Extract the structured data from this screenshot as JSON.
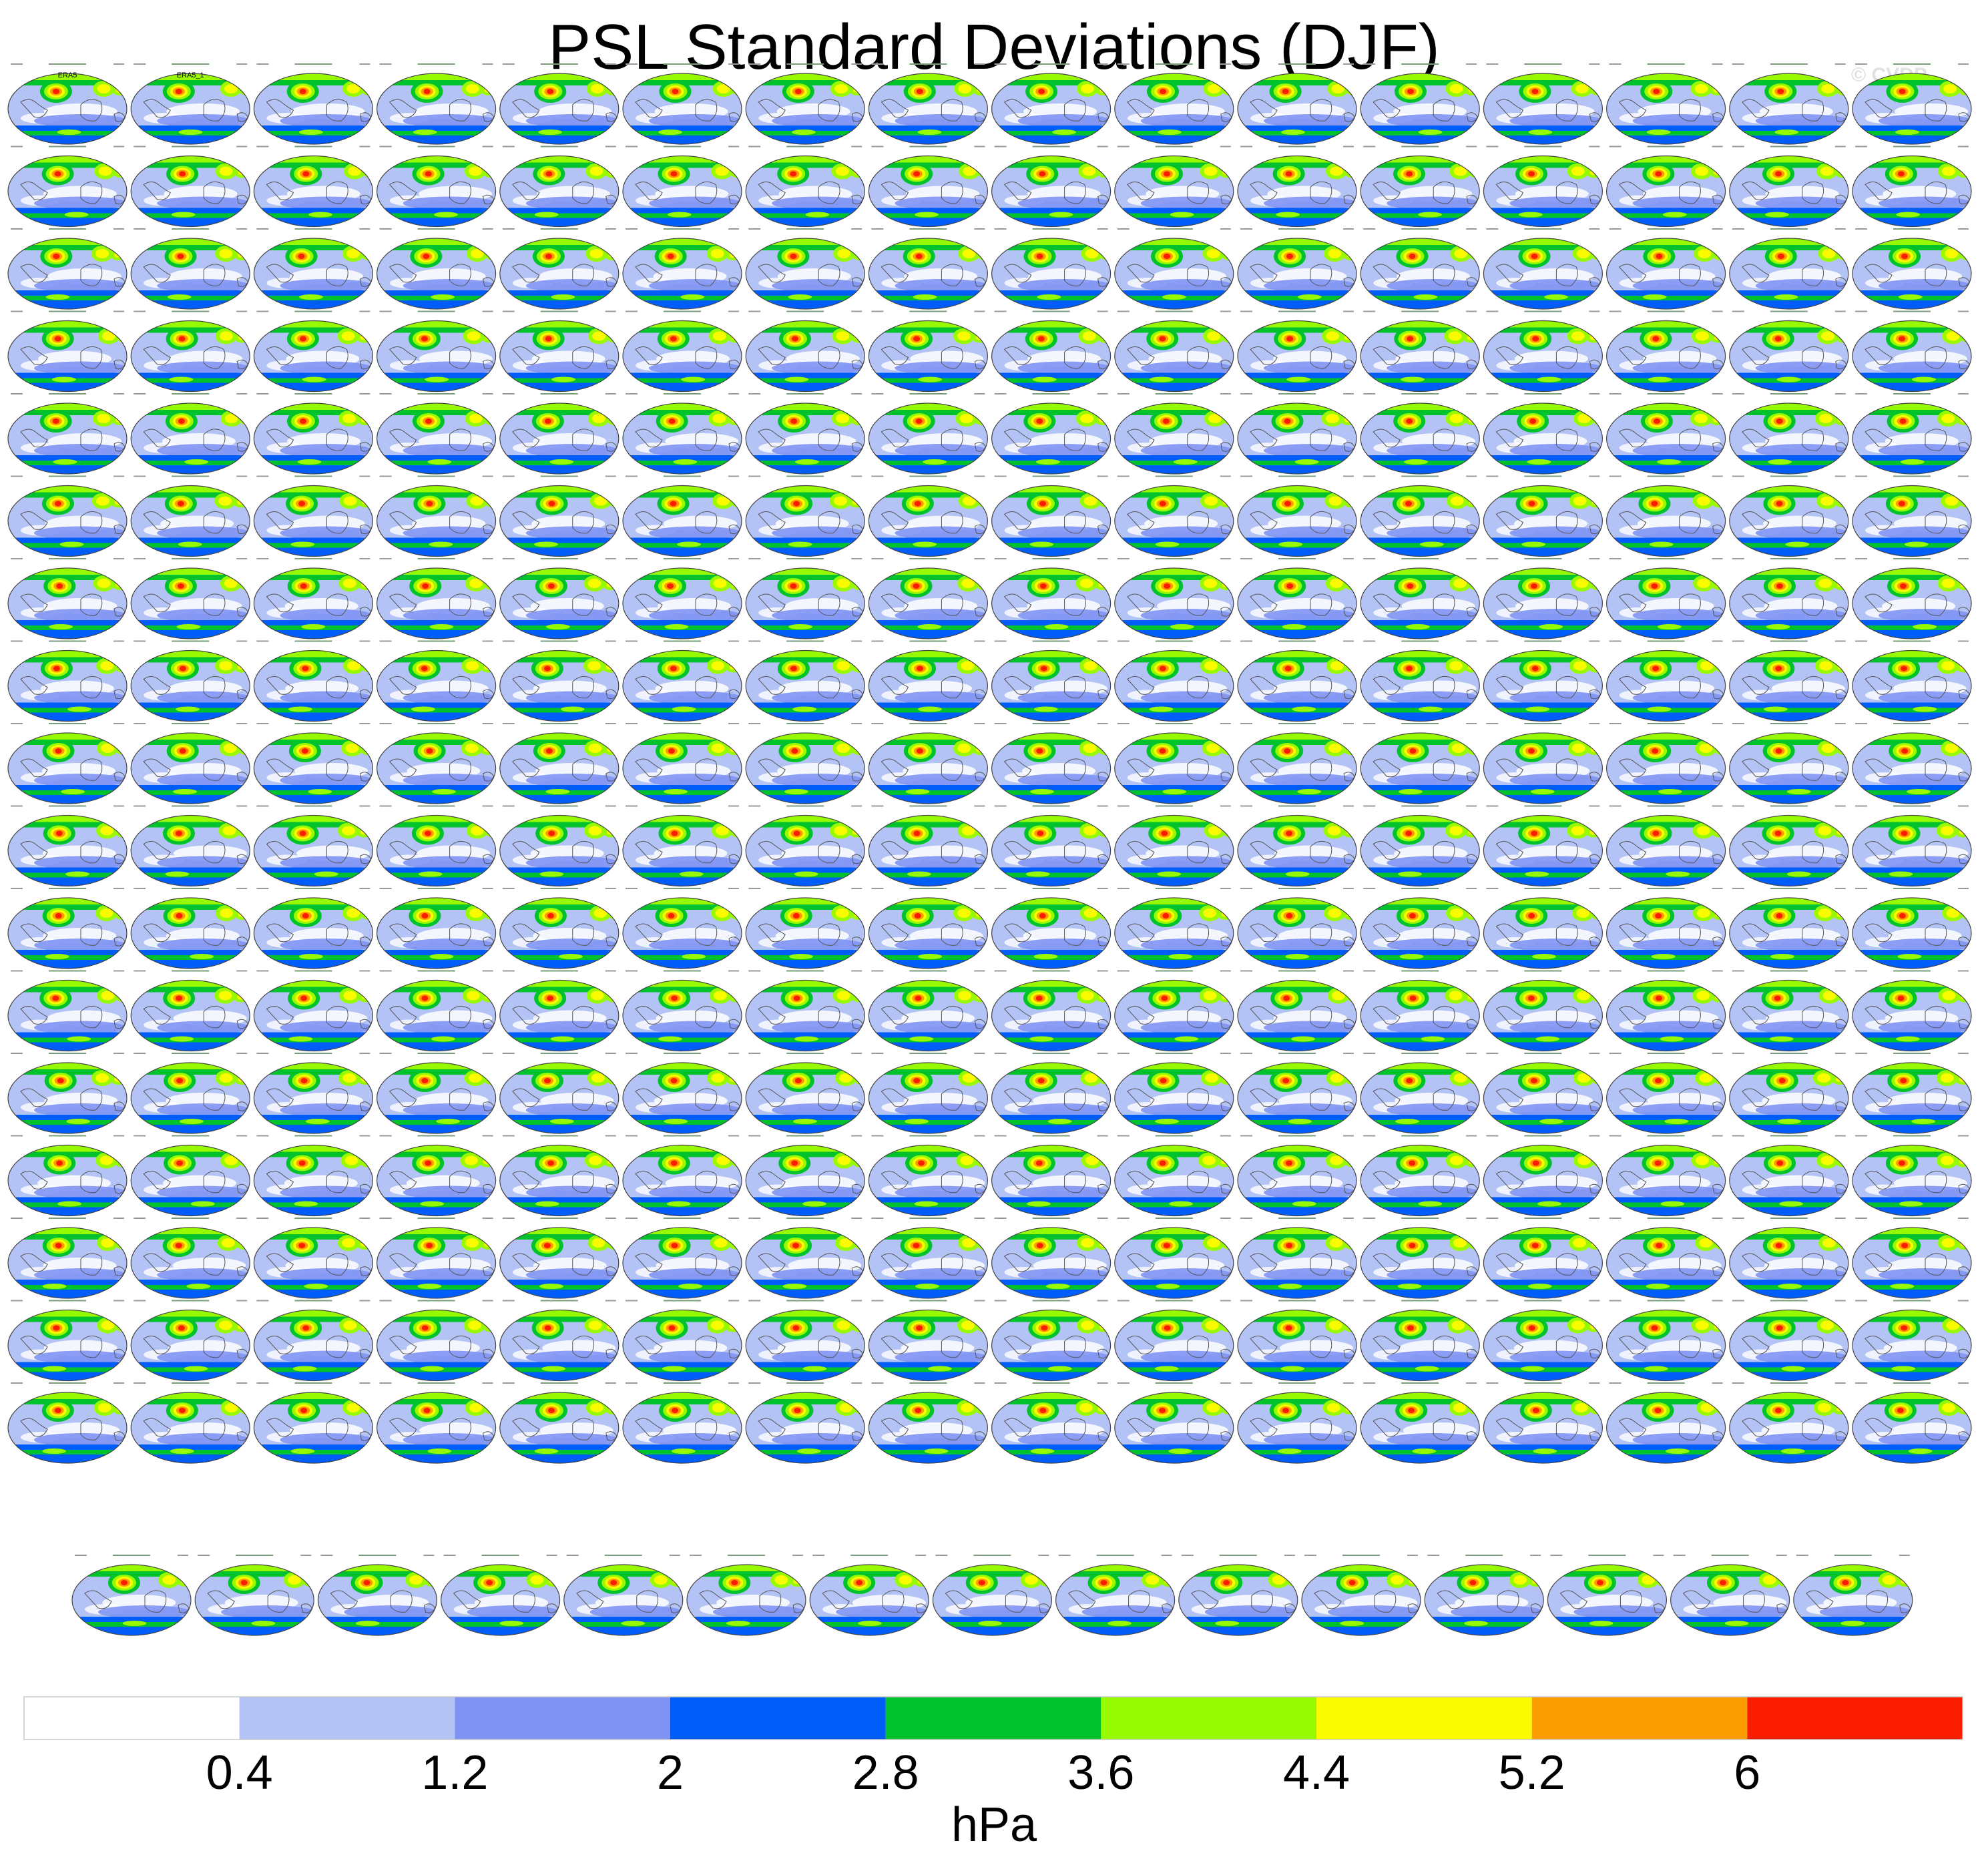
{
  "figure": {
    "title": "PSL Standard Deviations (DJF)",
    "watermark": "© CVDP"
  },
  "panels": {
    "first_panel_titles": [
      "ERA5",
      "ERA5_1"
    ],
    "color_levels": [
      "#ffffff",
      "#b4c3f5",
      "#7f93f3",
      "#005dfa",
      "#00c22d",
      "#97fa00",
      "#fbfb00",
      "#fb9d00",
      "#fb1d00"
    ],
    "full_rows": 17,
    "panels_per_full_row": 16,
    "last_row_panels": 15
  },
  "chart_data": {
    "type": "heatmap",
    "title": "PSL Standard Deviations (DJF)",
    "colorbar": {
      "ticks": [
        "0.4",
        "1.2",
        "2",
        "2.8",
        "3.6",
        "4.4",
        "5.2",
        "6"
      ],
      "label": "hPa",
      "colors": [
        "#ffffff",
        "#b4c3f5",
        "#7f93f3",
        "#005dfa",
        "#00c22d",
        "#97fa00",
        "#fbfb00",
        "#fb9d00",
        "#fb1d00"
      ]
    }
  }
}
